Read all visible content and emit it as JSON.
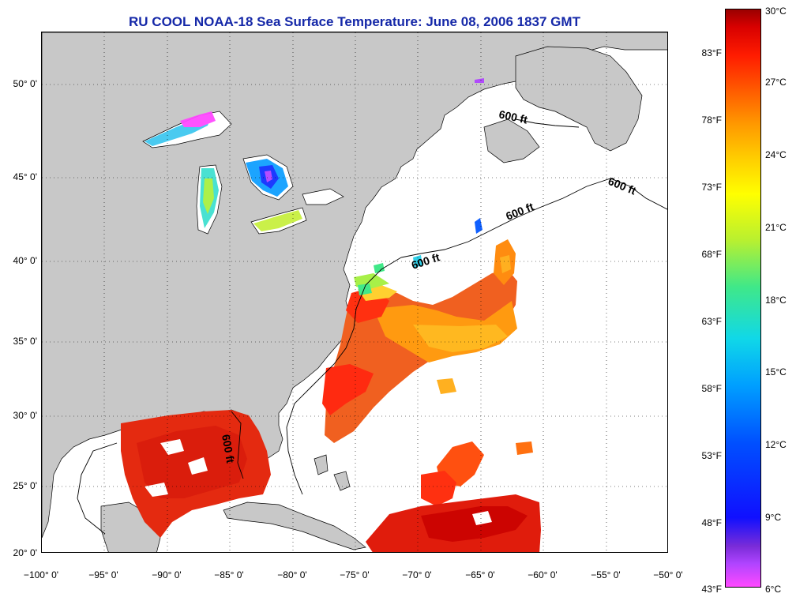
{
  "title": "RU COOL  NOAA-18  Sea Surface Temperature:  June 08, 2006 1837 GMT",
  "map": {
    "lat_labels": [
      "50° 0'",
      "45° 0'",
      "40° 0'",
      "35° 0'",
      "30° 0'",
      "25° 0'",
      "20° 0'"
    ],
    "lon_labels": [
      "−100° 0'",
      "−95° 0'",
      "−90° 0'",
      "−85° 0'",
      "−80° 0'",
      "−75° 0'",
      "−70° 0'",
      "−65° 0'",
      "−60° 0'",
      "−55° 0'",
      "−50° 0'"
    ],
    "isobath_labels": [
      "600 ft",
      "600 ft",
      "600 ft",
      "600 ft",
      "600 ft"
    ],
    "colors": {
      "land": "#c8c8c8",
      "no_data": "#ffffff",
      "title": "#1528a8"
    }
  },
  "colorbar": {
    "fahrenheit_labels": [
      "83°F",
      "78°F",
      "73°F",
      "68°F",
      "63°F",
      "58°F",
      "53°F",
      "48°F",
      "43°F"
    ],
    "celsius_labels": [
      "30°C",
      "27°C",
      "24°C",
      "21°C",
      "18°C",
      "15°C",
      "12°C",
      "9°C",
      "6°C"
    ]
  }
}
